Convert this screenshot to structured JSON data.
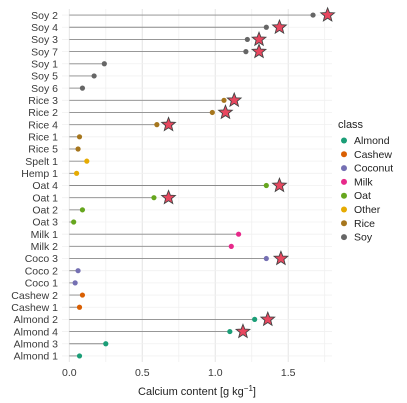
{
  "chart_data": {
    "type": "lollipop",
    "xlabel": "Calcium content [g kg",
    "xlabel_sup": "−1",
    "xlabel_end": "]",
    "xlim": [
      -0.05,
      1.8
    ],
    "xticks": [
      {
        "value": 0.0,
        "label": "0.0"
      },
      {
        "value": 0.5,
        "label": "0.5"
      },
      {
        "value": 1.0,
        "label": "1.0"
      },
      {
        "value": 1.5,
        "label": "1.5"
      }
    ],
    "grid": true,
    "legend": {
      "title": "class",
      "position": "right",
      "entries": [
        {
          "name": "Almond",
          "color": "#1b9e77"
        },
        {
          "name": "Cashew",
          "color": "#d95f02"
        },
        {
          "name": "Coconut",
          "color": "#7570b3"
        },
        {
          "name": "Milk",
          "color": "#e7298a"
        },
        {
          "name": "Oat",
          "color": "#66a61e"
        },
        {
          "name": "Other",
          "color": "#e6ab02"
        },
        {
          "name": "Rice",
          "color": "#a6761d"
        },
        {
          "name": "Soy",
          "color": "#666666"
        }
      ]
    },
    "highlight_marker": {
      "shape": "star",
      "fill": "#e8475f",
      "stroke": "#444444"
    },
    "rows": [
      {
        "label": "Soy 2",
        "class": "Soy",
        "value": 1.67,
        "star": 1.77
      },
      {
        "label": "Soy 4",
        "class": "Soy",
        "value": 1.35,
        "star": 1.44
      },
      {
        "label": "Soy 3",
        "class": "Soy",
        "value": 1.22,
        "star": 1.3
      },
      {
        "label": "Soy 7",
        "class": "Soy",
        "value": 1.21,
        "star": 1.3
      },
      {
        "label": "Soy 1",
        "class": "Soy",
        "value": 0.24,
        "star": null
      },
      {
        "label": "Soy 5",
        "class": "Soy",
        "value": 0.17,
        "star": null
      },
      {
        "label": "Soy 6",
        "class": "Soy",
        "value": 0.09,
        "star": null
      },
      {
        "label": "Rice 3",
        "class": "Rice",
        "value": 1.06,
        "star": 1.13
      },
      {
        "label": "Rice 2",
        "class": "Rice",
        "value": 0.98,
        "star": 1.07
      },
      {
        "label": "Rice 4",
        "class": "Rice",
        "value": 0.6,
        "star": 0.68
      },
      {
        "label": "Rice 1",
        "class": "Rice",
        "value": 0.07,
        "star": null
      },
      {
        "label": "Rice 5",
        "class": "Rice",
        "value": 0.06,
        "star": null
      },
      {
        "label": "Spelt 1",
        "class": "Other",
        "value": 0.12,
        "star": null
      },
      {
        "label": "Hemp 1",
        "class": "Other",
        "value": 0.05,
        "star": null
      },
      {
        "label": "Oat 4",
        "class": "Oat",
        "value": 1.35,
        "star": 1.44
      },
      {
        "label": "Oat 1",
        "class": "Oat",
        "value": 0.58,
        "star": 0.68
      },
      {
        "label": "Oat 2",
        "class": "Oat",
        "value": 0.09,
        "star": null
      },
      {
        "label": "Oat 3",
        "class": "Oat",
        "value": 0.03,
        "star": null
      },
      {
        "label": "Milk 1",
        "class": "Milk",
        "value": 1.16,
        "star": null
      },
      {
        "label": "Milk 2",
        "class": "Milk",
        "value": 1.11,
        "star": null
      },
      {
        "label": "Coco 3",
        "class": "Coconut",
        "value": 1.35,
        "star": 1.45
      },
      {
        "label": "Coco 2",
        "class": "Coconut",
        "value": 0.06,
        "star": null
      },
      {
        "label": "Coco 1",
        "class": "Coconut",
        "value": 0.04,
        "star": null
      },
      {
        "label": "Cashew 2",
        "class": "Cashew",
        "value": 0.09,
        "star": null
      },
      {
        "label": "Cashew 1",
        "class": "Cashew",
        "value": 0.07,
        "star": null
      },
      {
        "label": "Almond 2",
        "class": "Almond",
        "value": 1.27,
        "star": 1.36
      },
      {
        "label": "Almond 4",
        "class": "Almond",
        "value": 1.1,
        "star": 1.19
      },
      {
        "label": "Almond 3",
        "class": "Almond",
        "value": 0.25,
        "star": null
      },
      {
        "label": "Almond 1",
        "class": "Almond",
        "value": 0.07,
        "star": null
      }
    ]
  }
}
